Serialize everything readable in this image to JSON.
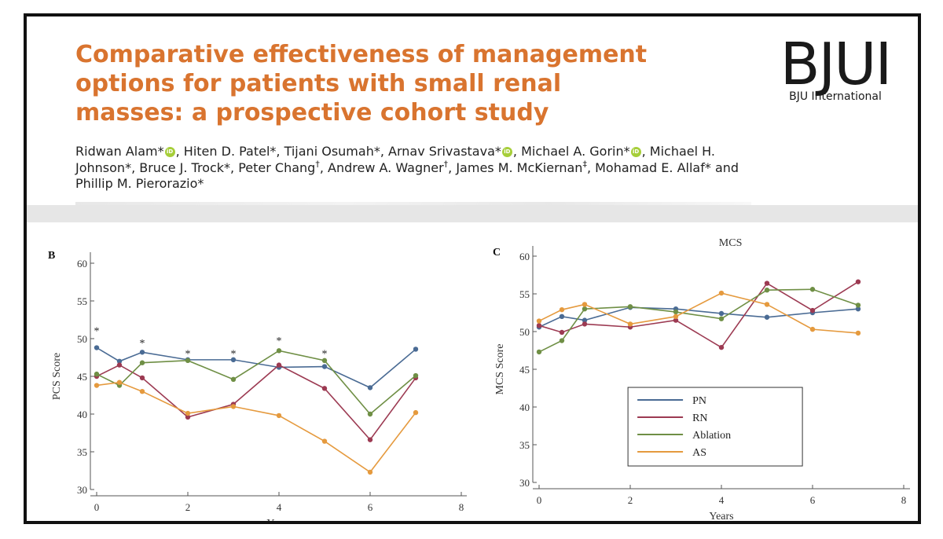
{
  "article": {
    "title": "Comparative effectiveness of management options for patients with small renal masses: a prospective cohort study",
    "authors": [
      {
        "name": "Ridwan Alam",
        "mark": "*",
        "orcid": true
      },
      {
        "name": "Hiten D. Patel",
        "mark": "*",
        "orcid": false
      },
      {
        "name": "Tijani Osumah",
        "mark": "*",
        "orcid": false
      },
      {
        "name": "Arnav Srivastava",
        "mark": "*",
        "orcid": true
      },
      {
        "name": "Michael A. Gorin",
        "mark": "*",
        "orcid": true
      },
      {
        "name": "Michael H. Johnson",
        "mark": "*",
        "orcid": false
      },
      {
        "name": "Bruce J. Trock",
        "mark": "*",
        "orcid": false
      },
      {
        "name": "Peter Chang",
        "mark": "†",
        "orcid": false
      },
      {
        "name": "Andrew A. Wagner",
        "mark": "†",
        "orcid": false
      },
      {
        "name": "James M. McKiernan",
        "mark": "‡",
        "orcid": false
      },
      {
        "name": "Mohamad E. Allaf",
        "mark": "*",
        "orcid": false
      },
      {
        "name": "Phillip M. Pierorazio",
        "mark": "*",
        "orcid": false
      }
    ],
    "orcid_badge": "iD"
  },
  "logo": {
    "main": "BJUI",
    "sub": "BJU International"
  },
  "chart_data": [
    {
      "type": "line",
      "panel_label": "B",
      "title": "",
      "xlabel": "Years",
      "ylabel": "PCS Score",
      "xlim": [
        0,
        8
      ],
      "ylim": [
        30,
        60
      ],
      "xticks": [
        0,
        2,
        4,
        6,
        8
      ],
      "yticks": [
        30,
        35,
        40,
        45,
        50,
        55,
        60
      ],
      "grid": false,
      "significance_markers": {
        "symbol": "*",
        "x": [
          0,
          1,
          2,
          3,
          4,
          5
        ],
        "y": [
          51.3,
          49.7,
          48.3,
          48.3,
          50.0,
          48.3
        ]
      },
      "series": [
        {
          "name": "PN",
          "color": "#4a6b94",
          "x": [
            0,
            0.5,
            1,
            2,
            3,
            4,
            5,
            6,
            7
          ],
          "y": [
            48.8,
            47.0,
            48.2,
            47.2,
            47.2,
            46.2,
            46.3,
            43.5,
            48.6
          ]
        },
        {
          "name": "RN",
          "color": "#9c3a52",
          "x": [
            0,
            0.5,
            1,
            2,
            3,
            4,
            5,
            6,
            7
          ],
          "y": [
            45.0,
            46.5,
            44.8,
            39.6,
            41.3,
            46.5,
            43.4,
            36.6,
            44.8
          ]
        },
        {
          "name": "Ablation",
          "color": "#6f8f45",
          "x": [
            0,
            0.5,
            1,
            2,
            3,
            4,
            5,
            6,
            7
          ],
          "y": [
            45.3,
            43.8,
            46.8,
            47.1,
            44.6,
            48.4,
            47.1,
            40.0,
            45.1
          ]
        },
        {
          "name": "AS",
          "color": "#e59a3e",
          "x": [
            0,
            0.5,
            1,
            2,
            3,
            4,
            5,
            6,
            7
          ],
          "y": [
            43.8,
            44.2,
            43.0,
            40.1,
            41.0,
            39.8,
            36.4,
            32.3,
            40.2
          ]
        }
      ]
    },
    {
      "type": "line",
      "panel_label": "C",
      "title": "MCS",
      "xlabel": "Years",
      "ylabel": "MCS Score",
      "xlim": [
        0,
        8
      ],
      "ylim": [
        30,
        60
      ],
      "xticks": [
        0,
        2,
        4,
        6,
        8
      ],
      "yticks": [
        30,
        35,
        40,
        45,
        50,
        55,
        60
      ],
      "grid": false,
      "legend": {
        "placement": "lower-center",
        "entries": [
          "PN",
          "RN",
          "Ablation",
          "AS"
        ]
      },
      "series": [
        {
          "name": "PN",
          "color": "#4a6b94",
          "x": [
            0,
            0.5,
            1,
            2,
            3,
            4,
            5,
            6,
            7
          ],
          "y": [
            50.6,
            52.0,
            51.5,
            53.2,
            53.0,
            52.4,
            51.9,
            52.5,
            53.0
          ]
        },
        {
          "name": "RN",
          "color": "#9c3a52",
          "x": [
            0,
            0.5,
            1,
            2,
            3,
            4,
            5,
            6,
            7
          ],
          "y": [
            50.8,
            49.9,
            51.0,
            50.6,
            51.5,
            47.9,
            56.4,
            52.8,
            56.6
          ]
        },
        {
          "name": "Ablation",
          "color": "#6f8f45",
          "x": [
            0,
            0.5,
            1,
            2,
            3,
            4,
            5,
            6,
            7
          ],
          "y": [
            47.3,
            48.8,
            53.0,
            53.3,
            52.6,
            51.7,
            55.5,
            55.6,
            53.5
          ]
        },
        {
          "name": "AS",
          "color": "#e59a3e",
          "x": [
            0,
            0.5,
            1,
            2,
            3,
            4,
            5,
            6,
            7
          ],
          "y": [
            51.4,
            52.9,
            53.6,
            51.0,
            52.0,
            55.1,
            53.6,
            50.3,
            49.8
          ]
        }
      ]
    }
  ]
}
